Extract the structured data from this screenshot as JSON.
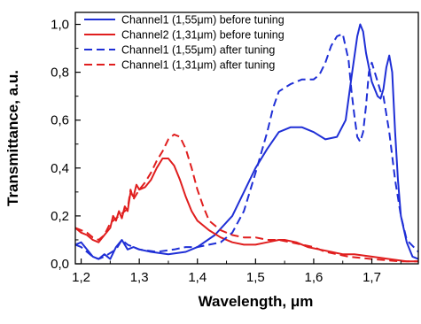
{
  "chart_data": {
    "type": "line",
    "title": "",
    "xlabel": "Wavelength, μm",
    "ylabel": "Transmittance, a.u.",
    "xlim": [
      1.19,
      1.78
    ],
    "ylim": [
      0.0,
      1.05
    ],
    "x_ticks": [
      "1,2",
      "1,3",
      "1,4",
      "1,5",
      "1,6",
      "1,7"
    ],
    "x_tick_values": [
      1.2,
      1.3,
      1.4,
      1.5,
      1.6,
      1.7
    ],
    "y_ticks": [
      "0,0",
      "0,2",
      "0,4",
      "0,6",
      "0,8",
      "1,0"
    ],
    "y_tick_values": [
      0.0,
      0.2,
      0.4,
      0.6,
      0.8,
      1.0
    ],
    "grid": false,
    "legend_position": "top-left",
    "series": [
      {
        "name": "Channel1 (1,55μm) before tuning",
        "color": "#1f2fd6",
        "dash": "solid",
        "points": [
          [
            1.19,
            0.08
          ],
          [
            1.2,
            0.09
          ],
          [
            1.21,
            0.06
          ],
          [
            1.22,
            0.03
          ],
          [
            1.23,
            0.02
          ],
          [
            1.24,
            0.04
          ],
          [
            1.25,
            0.02
          ],
          [
            1.26,
            0.07
          ],
          [
            1.27,
            0.1
          ],
          [
            1.28,
            0.06
          ],
          [
            1.29,
            0.07
          ],
          [
            1.3,
            0.06
          ],
          [
            1.32,
            0.05
          ],
          [
            1.35,
            0.04
          ],
          [
            1.38,
            0.05
          ],
          [
            1.4,
            0.07
          ],
          [
            1.43,
            0.12
          ],
          [
            1.46,
            0.2
          ],
          [
            1.48,
            0.3
          ],
          [
            1.5,
            0.4
          ],
          [
            1.52,
            0.48
          ],
          [
            1.54,
            0.55
          ],
          [
            1.56,
            0.57
          ],
          [
            1.58,
            0.57
          ],
          [
            1.6,
            0.55
          ],
          [
            1.62,
            0.52
          ],
          [
            1.64,
            0.53
          ],
          [
            1.655,
            0.6
          ],
          [
            1.665,
            0.78
          ],
          [
            1.675,
            0.95
          ],
          [
            1.68,
            1.0
          ],
          [
            1.685,
            0.97
          ],
          [
            1.69,
            0.88
          ],
          [
            1.7,
            0.76
          ],
          [
            1.71,
            0.7
          ],
          [
            1.715,
            0.69
          ],
          [
            1.72,
            0.73
          ],
          [
            1.725,
            0.82
          ],
          [
            1.73,
            0.87
          ],
          [
            1.735,
            0.8
          ],
          [
            1.74,
            0.55
          ],
          [
            1.745,
            0.35
          ],
          [
            1.75,
            0.2
          ],
          [
            1.76,
            0.09
          ],
          [
            1.77,
            0.03
          ],
          [
            1.78,
            0.02
          ]
        ]
      },
      {
        "name": "Channel2 (1,31μm) before tuning",
        "color": "#e01e1e",
        "dash": "solid",
        "points": [
          [
            1.19,
            0.15
          ],
          [
            1.2,
            0.13
          ],
          [
            1.21,
            0.12
          ],
          [
            1.22,
            0.1
          ],
          [
            1.23,
            0.09
          ],
          [
            1.24,
            0.12
          ],
          [
            1.25,
            0.15
          ],
          [
            1.255,
            0.2
          ],
          [
            1.26,
            0.18
          ],
          [
            1.265,
            0.22
          ],
          [
            1.27,
            0.19
          ],
          [
            1.275,
            0.24
          ],
          [
            1.28,
            0.22
          ],
          [
            1.285,
            0.3
          ],
          [
            1.29,
            0.28
          ],
          [
            1.295,
            0.33
          ],
          [
            1.3,
            0.31
          ],
          [
            1.31,
            0.32
          ],
          [
            1.32,
            0.35
          ],
          [
            1.33,
            0.4
          ],
          [
            1.34,
            0.44
          ],
          [
            1.35,
            0.44
          ],
          [
            1.36,
            0.41
          ],
          [
            1.37,
            0.35
          ],
          [
            1.38,
            0.28
          ],
          [
            1.39,
            0.22
          ],
          [
            1.4,
            0.18
          ],
          [
            1.42,
            0.14
          ],
          [
            1.44,
            0.11
          ],
          [
            1.46,
            0.09
          ],
          [
            1.48,
            0.08
          ],
          [
            1.5,
            0.08
          ],
          [
            1.52,
            0.09
          ],
          [
            1.54,
            0.1
          ],
          [
            1.55,
            0.1
          ],
          [
            1.57,
            0.09
          ],
          [
            1.59,
            0.07
          ],
          [
            1.61,
            0.06
          ],
          [
            1.63,
            0.05
          ],
          [
            1.65,
            0.04
          ],
          [
            1.67,
            0.04
          ],
          [
            1.7,
            0.03
          ],
          [
            1.73,
            0.02
          ],
          [
            1.76,
            0.01
          ],
          [
            1.78,
            0.01
          ]
        ]
      },
      {
        "name": "Channel1 (1,55μm) after tuning",
        "color": "#1f2fd6",
        "dash": "dashed",
        "points": [
          [
            1.19,
            0.08
          ],
          [
            1.2,
            0.07
          ],
          [
            1.21,
            0.05
          ],
          [
            1.22,
            0.03
          ],
          [
            1.23,
            0.02
          ],
          [
            1.24,
            0.03
          ],
          [
            1.26,
            0.06
          ],
          [
            1.27,
            0.1
          ],
          [
            1.28,
            0.08
          ],
          [
            1.3,
            0.06
          ],
          [
            1.33,
            0.05
          ],
          [
            1.36,
            0.06
          ],
          [
            1.38,
            0.07
          ],
          [
            1.4,
            0.07
          ],
          [
            1.42,
            0.08
          ],
          [
            1.44,
            0.09
          ],
          [
            1.46,
            0.13
          ],
          [
            1.48,
            0.22
          ],
          [
            1.5,
            0.38
          ],
          [
            1.52,
            0.55
          ],
          [
            1.53,
            0.65
          ],
          [
            1.54,
            0.72
          ],
          [
            1.56,
            0.75
          ],
          [
            1.58,
            0.77
          ],
          [
            1.6,
            0.77
          ],
          [
            1.61,
            0.79
          ],
          [
            1.62,
            0.84
          ],
          [
            1.63,
            0.91
          ],
          [
            1.64,
            0.95
          ],
          [
            1.65,
            0.96
          ],
          [
            1.66,
            0.85
          ],
          [
            1.665,
            0.72
          ],
          [
            1.67,
            0.62
          ],
          [
            1.675,
            0.53
          ],
          [
            1.68,
            0.51
          ],
          [
            1.685,
            0.55
          ],
          [
            1.69,
            0.66
          ],
          [
            1.695,
            0.8
          ],
          [
            1.7,
            0.84
          ],
          [
            1.705,
            0.8
          ],
          [
            1.71,
            0.76
          ],
          [
            1.715,
            0.72
          ],
          [
            1.72,
            0.7
          ],
          [
            1.73,
            0.55
          ],
          [
            1.74,
            0.35
          ],
          [
            1.75,
            0.2
          ],
          [
            1.76,
            0.1
          ],
          [
            1.78,
            0.05
          ]
        ]
      },
      {
        "name": "Channel1 (1,31μm) after tuning",
        "color": "#e01e1e",
        "dash": "dashed",
        "points": [
          [
            1.19,
            0.15
          ],
          [
            1.2,
            0.14
          ],
          [
            1.21,
            0.13
          ],
          [
            1.22,
            0.11
          ],
          [
            1.23,
            0.1
          ],
          [
            1.24,
            0.12
          ],
          [
            1.25,
            0.17
          ],
          [
            1.26,
            0.19
          ],
          [
            1.27,
            0.21
          ],
          [
            1.28,
            0.23
          ],
          [
            1.285,
            0.31
          ],
          [
            1.29,
            0.27
          ],
          [
            1.3,
            0.31
          ],
          [
            1.31,
            0.34
          ],
          [
            1.32,
            0.38
          ],
          [
            1.33,
            0.43
          ],
          [
            1.34,
            0.47
          ],
          [
            1.35,
            0.52
          ],
          [
            1.36,
            0.54
          ],
          [
            1.37,
            0.53
          ],
          [
            1.38,
            0.48
          ],
          [
            1.39,
            0.4
          ],
          [
            1.4,
            0.31
          ],
          [
            1.41,
            0.24
          ],
          [
            1.42,
            0.18
          ],
          [
            1.44,
            0.14
          ],
          [
            1.46,
            0.12
          ],
          [
            1.48,
            0.11
          ],
          [
            1.5,
            0.11
          ],
          [
            1.52,
            0.1
          ],
          [
            1.54,
            0.1
          ],
          [
            1.56,
            0.09
          ],
          [
            1.58,
            0.08
          ],
          [
            1.6,
            0.07
          ],
          [
            1.62,
            0.05
          ],
          [
            1.64,
            0.04
          ],
          [
            1.66,
            0.03
          ],
          [
            1.7,
            0.02
          ],
          [
            1.75,
            0.01
          ],
          [
            1.78,
            0.01
          ]
        ]
      }
    ]
  }
}
